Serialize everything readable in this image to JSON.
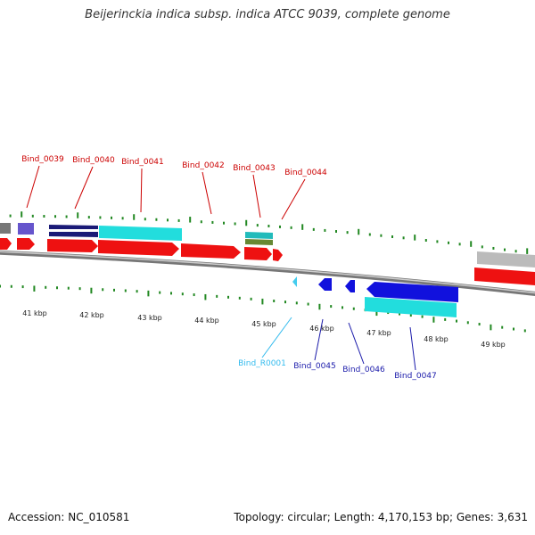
{
  "header": {
    "title": "Beijerinckia indica subsp. indica ATCC 9039, complete genome"
  },
  "footer": {
    "accession": "Accession: NC_010581",
    "stats": "Topology: circular; Length: 4,170,153 bp; Genes: 3,631"
  },
  "colors": {
    "forward_gene": "#ee1111",
    "reverse_gene": "#1111dd",
    "cds_feature": "#22dddd",
    "rna": "#44ccee",
    "tick": "#228822",
    "label_forward": "#cc0000",
    "label_reverse": "#1a1aaa",
    "label_rna": "#33bbee"
  },
  "gene_labels": [
    {
      "name": "Bind_0039",
      "strand": "forward"
    },
    {
      "name": "Bind_0040",
      "strand": "forward"
    },
    {
      "name": "Bind_0041",
      "strand": "forward"
    },
    {
      "name": "Bind_0042",
      "strand": "forward"
    },
    {
      "name": "Bind_0043",
      "strand": "forward"
    },
    {
      "name": "Bind_0044",
      "strand": "forward"
    },
    {
      "name": "Bind_R0001",
      "strand": "rna"
    },
    {
      "name": "Bind_0045",
      "strand": "reverse"
    },
    {
      "name": "Bind_0046",
      "strand": "reverse"
    },
    {
      "name": "Bind_0047",
      "strand": "reverse"
    }
  ],
  "kbp_labels": [
    "41 kbp",
    "42 kbp",
    "43 kbp",
    "44 kbp",
    "45 kbp",
    "46 kbp",
    "47 kbp",
    "48 kbp",
    "49 kbp"
  ]
}
